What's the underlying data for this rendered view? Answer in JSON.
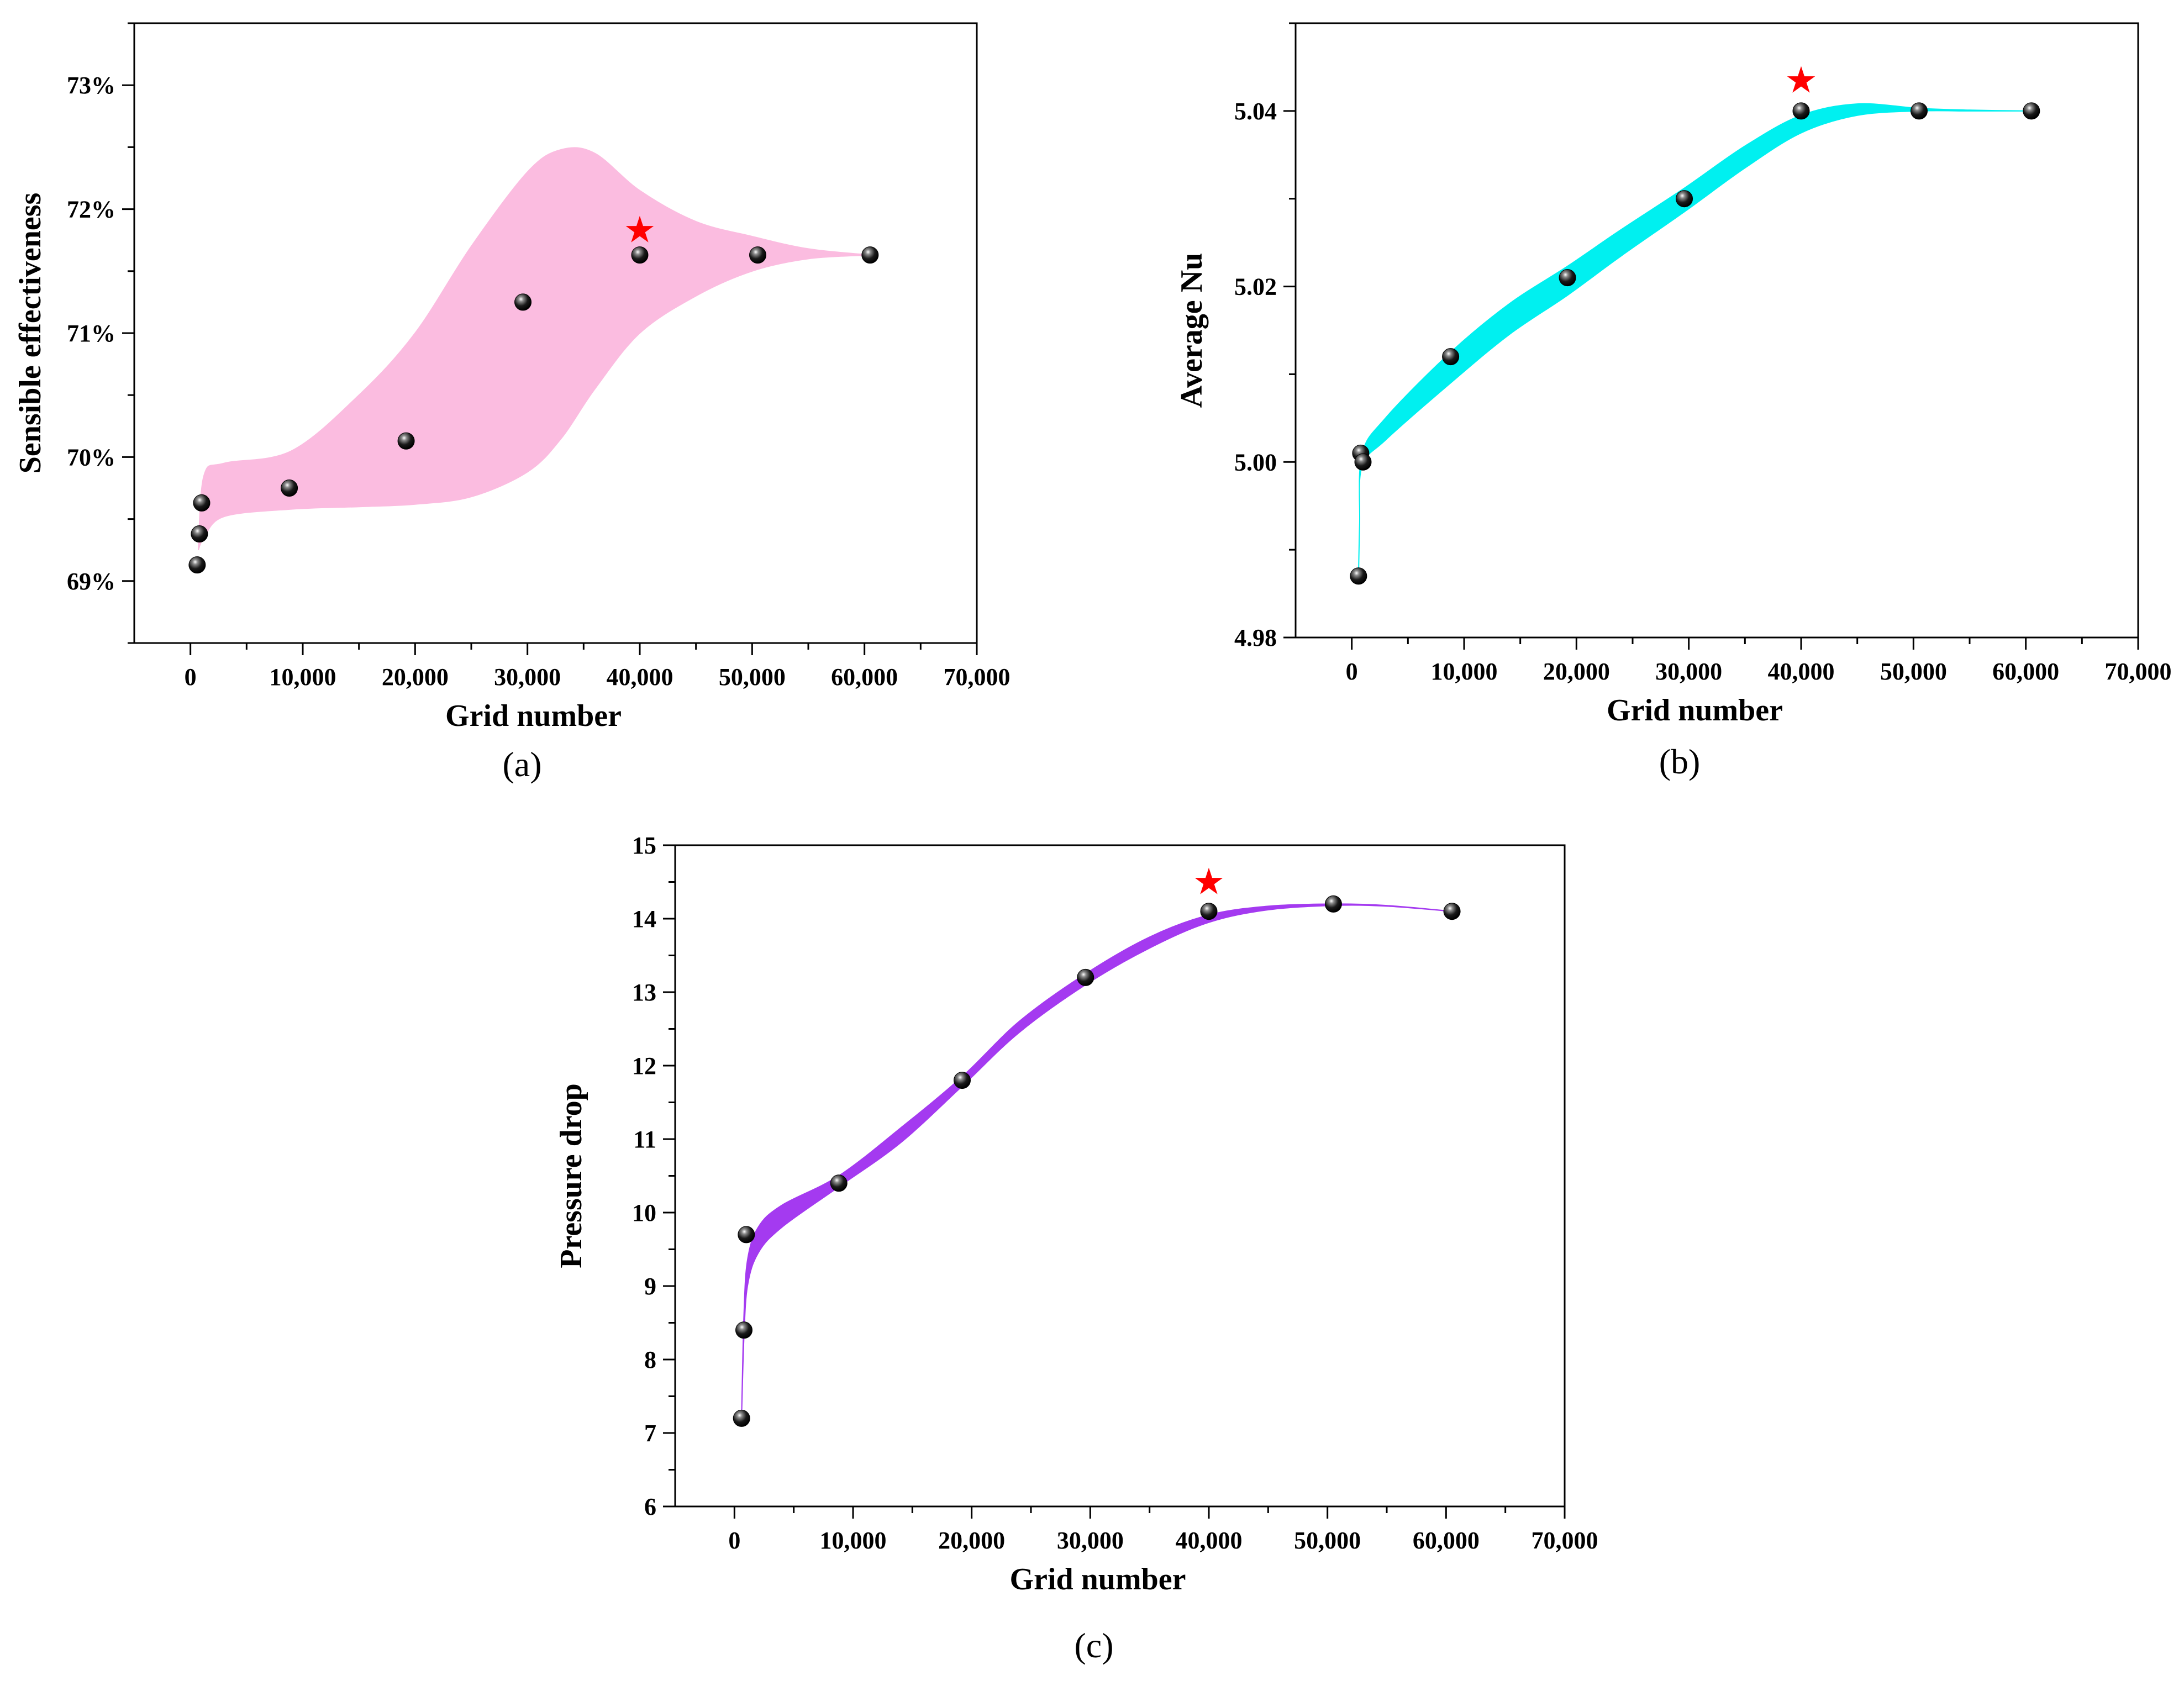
{
  "figure": {
    "background": "#ffffff",
    "star_color": "#ff0000",
    "marker_color": "#000000"
  },
  "chart_data": [
    {
      "id": "a",
      "type": "scatter",
      "panel_label": "(a)",
      "xlabel": "Grid number",
      "ylabel": "Sensible effectiveness",
      "xlim": [
        -5000,
        70000
      ],
      "ylim": [
        68.5,
        73.5
      ],
      "xticks": [
        0,
        10000,
        20000,
        30000,
        40000,
        50000,
        60000,
        70000
      ],
      "xtick_labels": [
        "0",
        "10,000",
        "20,000",
        "30,000",
        "40,000",
        "50,000",
        "60,000",
        "70,000"
      ],
      "yticks": [
        69,
        70,
        71,
        72,
        73
      ],
      "ytick_labels": [
        "69%",
        "70%",
        "71%",
        "72%",
        "73%"
      ],
      "band_color": "#fbbce0",
      "band_upper": {
        "x": [
          700,
          1200,
          3000,
          9000,
          15000,
          20000,
          25000,
          30000,
          33000,
          36000,
          40000,
          45000,
          50000,
          55000,
          60500
        ],
        "y": [
          69.25,
          69.85,
          69.95,
          70.05,
          70.5,
          71.0,
          71.7,
          72.3,
          72.48,
          72.45,
          72.15,
          71.9,
          71.78,
          71.68,
          71.63
        ]
      },
      "band_lower": {
        "x": [
          700,
          1200,
          3000,
          9000,
          15000,
          20000,
          25000,
          30000,
          33000,
          36000,
          40000,
          45000,
          50000,
          55000,
          60500
        ],
        "y": [
          69.25,
          69.35,
          69.52,
          69.58,
          69.6,
          69.62,
          69.68,
          69.88,
          70.15,
          70.55,
          71.0,
          71.3,
          71.5,
          71.6,
          71.63
        ]
      },
      "points": {
        "x": [
          600,
          800,
          1000,
          8800,
          19200,
          29600,
          40000,
          50500,
          60500
        ],
        "y": [
          69.13,
          69.38,
          69.63,
          69.75,
          70.13,
          71.25,
          71.63,
          71.63,
          71.63
        ]
      },
      "star": {
        "x": 40000,
        "y": 71.83,
        "label": "★"
      }
    },
    {
      "id": "b",
      "type": "scatter",
      "panel_label": "(b)",
      "xlabel": "Grid number",
      "ylabel": "Average Nu",
      "xlim": [
        -5000,
        70000
      ],
      "ylim": [
        4.98,
        5.05
      ],
      "xticks": [
        0,
        10000,
        20000,
        30000,
        40000,
        50000,
        60000,
        70000
      ],
      "xtick_labels": [
        "0",
        "10,000",
        "20,000",
        "30,000",
        "40,000",
        "50,000",
        "60,000",
        "70,000"
      ],
      "yticks": [
        4.98,
        5.0,
        5.02,
        5.04
      ],
      "ytick_labels": [
        "4.98",
        "5.00",
        "5.02",
        "5.04"
      ],
      "band_color": "#00f0f0",
      "band_upper": {
        "x": [
          600,
          700,
          900,
          3000,
          8800,
          14000,
          19200,
          24000,
          29600,
          35000,
          40000,
          45000,
          50500,
          55000,
          60500
        ],
        "y": [
          4.987,
          4.993,
          5.0008,
          5.005,
          5.0125,
          5.018,
          5.0223,
          5.0265,
          5.0312,
          5.036,
          5.0395,
          5.0408,
          5.0403,
          5.0401,
          5.04
        ]
      },
      "band_lower": {
        "x": [
          600,
          700,
          900,
          3000,
          8800,
          14000,
          19200,
          24000,
          29600,
          35000,
          40000,
          45000,
          50500,
          55000,
          60500
        ],
        "y": [
          4.987,
          4.993,
          4.9995,
          5.0025,
          5.009,
          5.0145,
          5.019,
          5.0235,
          5.0285,
          5.0335,
          5.0375,
          5.0395,
          5.04,
          5.04,
          5.04
        ]
      },
      "points": {
        "x": [
          600,
          800,
          1000,
          8800,
          19200,
          29600,
          40000,
          50500,
          60500
        ],
        "y": [
          4.987,
          5.001,
          5.0,
          5.012,
          5.021,
          5.03,
          5.04,
          5.04,
          5.04
        ]
      },
      "star": {
        "x": 40000,
        "y": 5.0435,
        "label": "★"
      }
    },
    {
      "id": "c",
      "type": "scatter",
      "panel_label": "(c)",
      "xlabel": "Grid number",
      "ylabel": "Pressure drop",
      "xlim": [
        -5000,
        70000
      ],
      "ylim": [
        6,
        15
      ],
      "xticks": [
        0,
        10000,
        20000,
        30000,
        40000,
        50000,
        60000,
        70000
      ],
      "xtick_labels": [
        "0",
        "10,000",
        "20,000",
        "30,000",
        "40,000",
        "50,000",
        "60,000",
        "70,000"
      ],
      "yticks": [
        6,
        7,
        8,
        9,
        10,
        11,
        12,
        13,
        14,
        15
      ],
      "ytick_labels": [
        "6",
        "7",
        "8",
        "9",
        "10",
        "11",
        "12",
        "13",
        "14",
        "15"
      ],
      "band_color": "#a43af0",
      "band_upper": {
        "x": [
          600,
          800,
          1100,
          2000,
          4000,
          8800,
          14000,
          19200,
          24000,
          29600,
          35000,
          40000,
          45000,
          50500,
          55000,
          60500
        ],
        "y": [
          7.2,
          8.6,
          9.35,
          9.8,
          10.1,
          10.5,
          11.15,
          11.85,
          12.6,
          13.25,
          13.75,
          14.05,
          14.17,
          14.2,
          14.18,
          14.1
        ]
      },
      "band_lower": {
        "x": [
          600,
          800,
          1100,
          2000,
          4000,
          8800,
          14000,
          19200,
          24000,
          29600,
          35000,
          40000,
          45000,
          50500,
          55000,
          60500
        ],
        "y": [
          7.2,
          8.3,
          9.0,
          9.45,
          9.8,
          10.35,
          10.95,
          11.72,
          12.45,
          13.1,
          13.6,
          13.95,
          14.12,
          14.18,
          14.17,
          14.1
        ]
      },
      "points": {
        "x": [
          600,
          800,
          1000,
          8800,
          19200,
          29600,
          40000,
          50500,
          60500
        ],
        "y": [
          7.2,
          8.4,
          9.7,
          10.4,
          11.8,
          13.2,
          14.1,
          14.2,
          14.1
        ]
      },
      "star": {
        "x": 40000,
        "y": 14.5,
        "label": "★"
      }
    }
  ]
}
